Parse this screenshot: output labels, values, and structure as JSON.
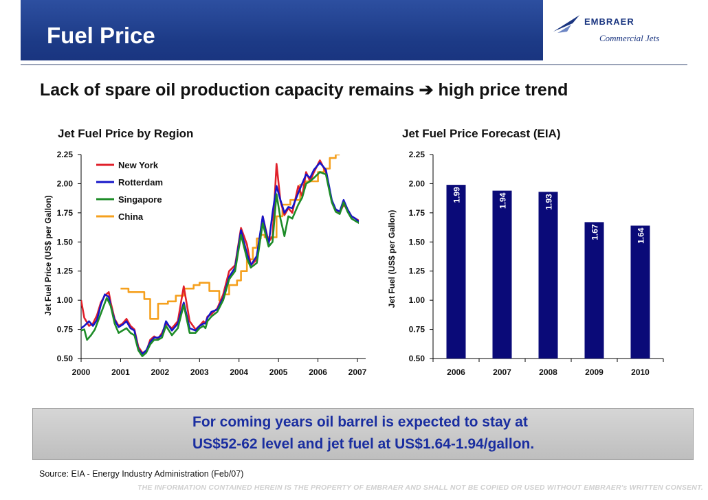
{
  "header": {
    "title": "Fuel Price"
  },
  "logo": {
    "name": "EMBRAER",
    "subtitle": "Commercial Jets"
  },
  "headline": "Lack of spare oil production capacity remains ➔ high price trend",
  "callout": {
    "line1": "For coming years oil barrel is expected to stay at",
    "line2": "US$52-62 level and jet fuel at US$1.64-1.94/gallon."
  },
  "footer": {
    "source": "Source: EIA - Energy Industry Administration (Feb/07)",
    "disclaimer": "THE INFORMATION CONTAINED HEREIN IS THE PROPERTY OF EMBRAER AND SHALL NOT BE COPIED OR USED WITHOUT EMBRAER's WRITTEN CONSENT."
  },
  "chart_data": [
    {
      "type": "line",
      "title": "Jet Fuel Price by Region",
      "ylabel": "Jet Fuel Price (US$ per Gallon)",
      "xlabel": "",
      "ylim": [
        0.5,
        2.25
      ],
      "xlim": [
        2000,
        2007
      ],
      "yticks": [
        "0.50",
        "0.75",
        "1.00",
        "1.25",
        "1.50",
        "1.75",
        "2.00",
        "2.25"
      ],
      "xticks": [
        "2000",
        "2001",
        "2002",
        "2003",
        "2004",
        "2005",
        "2006",
        "2007"
      ],
      "legend_position": "top-left",
      "series": [
        {
          "name": "New York",
          "color": "#e0202a",
          "x": [
            2000,
            2000.08,
            2000.2,
            2000.3,
            2000.4,
            2000.5,
            2000.6,
            2000.7,
            2000.75,
            2000.85,
            2000.95,
            2001.05,
            2001.15,
            2001.25,
            2001.35,
            2001.45,
            2001.55,
            2001.65,
            2001.75,
            2001.85,
            2001.95,
            2002.05,
            2002.15,
            2002.3,
            2002.45,
            2002.6,
            2002.75,
            2002.9,
            2003.0,
            2003.1,
            2003.15,
            2003.2,
            2003.3,
            2003.45,
            2003.6,
            2003.75,
            2003.9,
            2004.05,
            2004.2,
            2004.3,
            2004.45,
            2004.6,
            2004.75,
            2004.85,
            2004.95,
            2005.05,
            2005.15,
            2005.25,
            2005.35,
            2005.5,
            2005.6,
            2005.7,
            2005.8,
            2005.9,
            2006.05,
            2006.2,
            2006.35,
            2006.45,
            2006.55,
            2006.65,
            2006.75,
            2006.85,
            2006.95,
            2007.05
          ],
          "y": [
            1.0,
            0.85,
            0.78,
            0.8,
            0.87,
            0.98,
            1.04,
            1.07,
            0.98,
            0.84,
            0.78,
            0.8,
            0.84,
            0.78,
            0.75,
            0.6,
            0.55,
            0.56,
            0.66,
            0.69,
            0.67,
            0.72,
            0.8,
            0.76,
            0.82,
            1.12,
            0.82,
            0.75,
            0.78,
            0.82,
            0.8,
            0.86,
            0.88,
            0.93,
            1.05,
            1.25,
            1.3,
            1.62,
            1.48,
            1.3,
            1.35,
            1.72,
            1.5,
            1.55,
            2.17,
            1.85,
            1.73,
            1.79,
            1.75,
            1.98,
            1.89,
            2.1,
            2.02,
            2.1,
            2.2,
            2.1,
            1.85,
            1.78,
            1.75,
            1.82,
            1.78,
            1.72,
            1.7,
            1.68
          ]
        },
        {
          "name": "Rotterdam",
          "color": "#1515c8",
          "x": [
            2000,
            2000.08,
            2000.2,
            2000.3,
            2000.4,
            2000.5,
            2000.6,
            2000.7,
            2000.75,
            2000.85,
            2000.95,
            2001.05,
            2001.15,
            2001.25,
            2001.35,
            2001.45,
            2001.55,
            2001.65,
            2001.75,
            2001.85,
            2001.95,
            2002.05,
            2002.15,
            2002.3,
            2002.45,
            2002.6,
            2002.75,
            2002.9,
            2003.0,
            2003.1,
            2003.15,
            2003.2,
            2003.3,
            2003.45,
            2003.6,
            2003.75,
            2003.9,
            2004.05,
            2004.2,
            2004.3,
            2004.45,
            2004.6,
            2004.75,
            2004.85,
            2004.95,
            2005.05,
            2005.15,
            2005.25,
            2005.35,
            2005.5,
            2005.6,
            2005.7,
            2005.8,
            2005.9,
            2006.05,
            2006.2,
            2006.35,
            2006.45,
            2006.55,
            2006.65,
            2006.75,
            2006.85,
            2006.95,
            2007.05
          ],
          "y": [
            0.76,
            0.78,
            0.82,
            0.78,
            0.83,
            0.96,
            1.05,
            1.03,
            0.95,
            0.83,
            0.77,
            0.79,
            0.82,
            0.76,
            0.74,
            0.58,
            0.54,
            0.57,
            0.64,
            0.68,
            0.68,
            0.7,
            0.82,
            0.74,
            0.8,
            0.98,
            0.76,
            0.74,
            0.78,
            0.8,
            0.8,
            0.85,
            0.9,
            0.92,
            1.02,
            1.2,
            1.28,
            1.6,
            1.4,
            1.3,
            1.38,
            1.72,
            1.48,
            1.75,
            1.98,
            1.86,
            1.75,
            1.8,
            1.79,
            1.92,
            2.0,
            2.08,
            2.05,
            2.12,
            2.18,
            2.12,
            1.86,
            1.78,
            1.76,
            1.86,
            1.78,
            1.72,
            1.7,
            1.67
          ]
        },
        {
          "name": "Singapore",
          "color": "#1e8c28",
          "x": [
            2000,
            2000.08,
            2000.15,
            2000.25,
            2000.35,
            2000.45,
            2000.55,
            2000.65,
            2000.75,
            2000.85,
            2000.95,
            2001.05,
            2001.15,
            2001.25,
            2001.35,
            2001.45,
            2001.55,
            2001.65,
            2001.75,
            2001.85,
            2001.95,
            2002.05,
            2002.15,
            2002.3,
            2002.45,
            2002.6,
            2002.75,
            2002.9,
            2003.0,
            2003.1,
            2003.15,
            2003.2,
            2003.3,
            2003.45,
            2003.6,
            2003.75,
            2003.9,
            2004.05,
            2004.2,
            2004.3,
            2004.45,
            2004.6,
            2004.75,
            2004.85,
            2004.95,
            2005.05,
            2005.15,
            2005.25,
            2005.35,
            2005.5,
            2005.6,
            2005.7,
            2005.8,
            2005.9,
            2006.05,
            2006.2,
            2006.35,
            2006.45,
            2006.55,
            2006.65,
            2006.75,
            2006.85,
            2006.95,
            2007.05
          ],
          "y": [
            0.74,
            0.75,
            0.66,
            0.7,
            0.75,
            0.84,
            0.93,
            1.02,
            0.95,
            0.8,
            0.72,
            0.74,
            0.76,
            0.72,
            0.7,
            0.57,
            0.52,
            0.55,
            0.62,
            0.66,
            0.66,
            0.68,
            0.78,
            0.7,
            0.76,
            0.96,
            0.72,
            0.72,
            0.76,
            0.78,
            0.76,
            0.82,
            0.86,
            0.9,
            1.0,
            1.18,
            1.25,
            1.56,
            1.36,
            1.28,
            1.32,
            1.66,
            1.46,
            1.5,
            1.91,
            1.7,
            1.55,
            1.72,
            1.7,
            1.82,
            1.88,
            2.0,
            2.02,
            2.05,
            2.1,
            2.08,
            1.84,
            1.76,
            1.74,
            1.84,
            1.76,
            1.7,
            1.68,
            1.66
          ]
        },
        {
          "name": "China",
          "color": "#f5a01e",
          "x": [
            2001.0,
            2001.2,
            2001.2,
            2001.6,
            2001.6,
            2001.75,
            2001.75,
            2001.95,
            2001.95,
            2002.2,
            2002.2,
            2002.4,
            2002.4,
            2002.6,
            2002.6,
            2002.85,
            2002.85,
            2003.0,
            2003.0,
            2003.25,
            2003.25,
            2003.5,
            2003.5,
            2003.6,
            2003.6,
            2003.75,
            2003.75,
            2003.95,
            2003.95,
            2004.05,
            2004.05,
            2004.2,
            2004.2,
            2004.35,
            2004.35,
            2004.45,
            2004.45,
            2004.55,
            2004.55,
            2004.65,
            2004.65,
            2004.95,
            2004.95,
            2005.1,
            2005.1,
            2005.3,
            2005.3,
            2005.55,
            2005.55,
            2005.7,
            2005.7,
            2006.0,
            2006.0,
            2006.15,
            2006.15,
            2006.3,
            2006.3,
            2006.45,
            2006.45,
            2006.55
          ],
          "y": [
            1.1,
            1.1,
            1.07,
            1.07,
            1.01,
            1.01,
            0.84,
            0.84,
            0.97,
            0.97,
            0.99,
            0.99,
            1.04,
            1.04,
            1.1,
            1.1,
            1.13,
            1.13,
            1.15,
            1.15,
            1.08,
            1.08,
            1.0,
            1.0,
            1.05,
            1.05,
            1.13,
            1.13,
            1.17,
            1.17,
            1.25,
            1.25,
            1.35,
            1.35,
            1.45,
            1.45,
            1.53,
            1.53,
            1.56,
            1.56,
            1.54,
            1.54,
            1.72,
            1.72,
            1.82,
            1.82,
            1.86,
            1.86,
            1.99,
            1.99,
            2.02,
            2.02,
            2.1,
            2.1,
            2.13,
            2.13,
            2.22,
            2.22,
            2.25,
            2.25
          ]
        }
      ]
    },
    {
      "type": "bar",
      "title": "Jet Fuel Price Forecast (EIA)",
      "ylabel": "Jet Fuel (US$ per Gallon)",
      "xlabel": "",
      "categories": [
        "2006",
        "2007",
        "2008",
        "2009",
        "2010"
      ],
      "values": [
        1.99,
        1.94,
        1.93,
        1.67,
        1.64
      ],
      "value_labels": [
        "1.99",
        "1.94",
        "1.93",
        "1.67",
        "1.64"
      ],
      "ylim": [
        0.5,
        2.25
      ],
      "yticks": [
        "0.50",
        "0.75",
        "1.00",
        "1.25",
        "1.50",
        "1.75",
        "2.00",
        "2.25"
      ],
      "bar_color": "#0a0a78"
    }
  ]
}
